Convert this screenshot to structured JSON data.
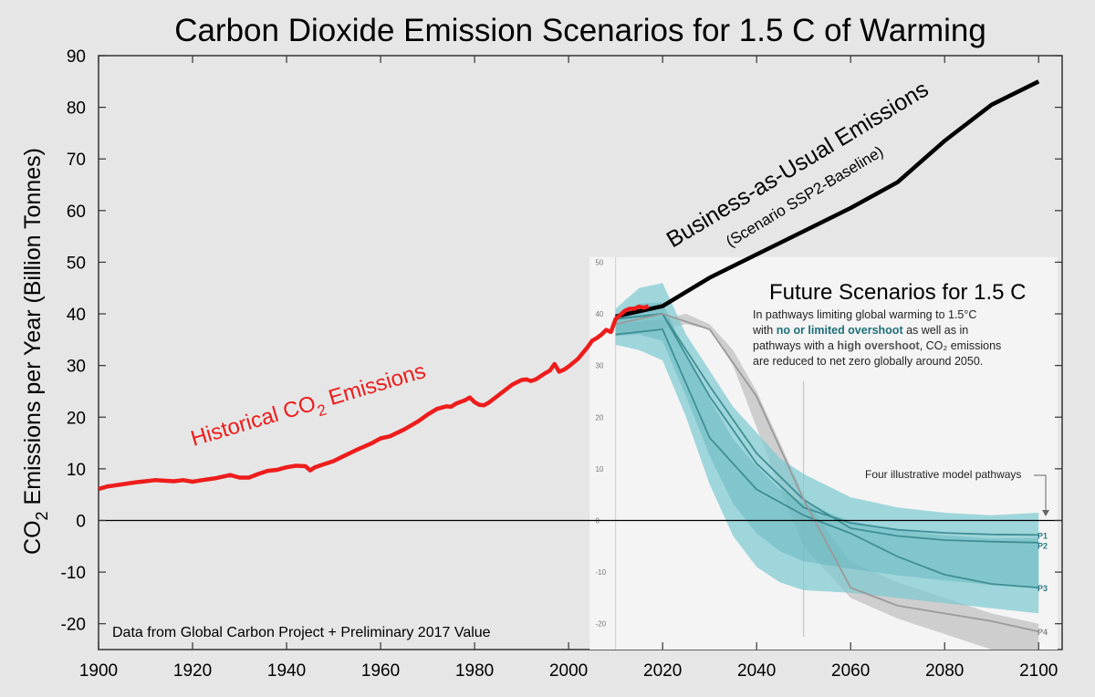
{
  "chart_data": {
    "type": "line",
    "title": "Carbon Dioxide Emission Scenarios for 1.5 C of Warming",
    "ylabel_parts": [
      "CO",
      "2",
      " Emissions per Year (Billion Tonnes)"
    ],
    "xlim": [
      1900,
      2105
    ],
    "ylim": [
      -25,
      90
    ],
    "xticks": [
      1900,
      1920,
      1940,
      1960,
      1980,
      2000,
      2020,
      2040,
      2060,
      2080,
      2100
    ],
    "yticks": [
      90,
      80,
      70,
      60,
      50,
      40,
      30,
      20,
      10,
      0,
      -10,
      -20
    ],
    "grid": false,
    "source_note": "Data from Global Carbon Project + Preliminary 2017 Value",
    "colors": {
      "historical": "#ee1c1c",
      "bau": "#000000",
      "band": "#7ecbd1",
      "band_dark": "#4aa8b2",
      "overshoot": "#c2c2c2",
      "pathway": "#3f8f95",
      "p4": "#9a9a9a",
      "bg": "#e6e6e6"
    },
    "historical": {
      "label_parts": [
        "Historical CO",
        "2",
        " Emissions"
      ],
      "x": [
        1900,
        1902,
        1905,
        1908,
        1910,
        1912,
        1914,
        1916,
        1918,
        1920,
        1922,
        1925,
        1928,
        1930,
        1932,
        1934,
        1936,
        1938,
        1940,
        1942,
        1944,
        1945,
        1946,
        1948,
        1950,
        1952,
        1955,
        1958,
        1960,
        1962,
        1965,
        1968,
        1970,
        1972,
        1974,
        1975,
        1976,
        1978,
        1979,
        1980,
        1981,
        1982,
        1983,
        1985,
        1988,
        1990,
        1991,
        1992,
        1993,
        1995,
        1996,
        1997,
        1998,
        1999,
        2000,
        2002,
        2004,
        2005,
        2006,
        2007,
        2008,
        2009,
        2010,
        2011,
        2012,
        2013,
        2014,
        2015,
        2016,
        2017
      ],
      "y": [
        6.1,
        6.6,
        7.0,
        7.4,
        7.6,
        7.8,
        7.7,
        7.6,
        7.8,
        7.5,
        7.8,
        8.2,
        8.8,
        8.3,
        8.3,
        9.0,
        9.6,
        9.8,
        10.3,
        10.6,
        10.5,
        9.7,
        10.3,
        10.9,
        11.5,
        12.4,
        13.7,
        14.9,
        15.9,
        16.3,
        17.6,
        19.2,
        20.5,
        21.6,
        22.1,
        22.0,
        22.6,
        23.3,
        23.8,
        22.9,
        22.4,
        22.3,
        22.8,
        24.2,
        26.3,
        27.2,
        27.3,
        27.0,
        27.3,
        28.5,
        29.0,
        30.3,
        28.8,
        29.2,
        29.8,
        31.3,
        33.5,
        34.8,
        35.3,
        36.0,
        36.9,
        36.5,
        39.0,
        39.8,
        40.6,
        41.0,
        41.0,
        41.4,
        41.2,
        41.5
      ]
    },
    "bau": {
      "label": "Business-as-Usual Emissions",
      "sublabel": "(Scenario SSP2-Baseline)",
      "x": [
        2010,
        2020,
        2030,
        2040,
        2050,
        2060,
        2070,
        2080,
        2090,
        2100
      ],
      "y": [
        39.5,
        41.5,
        47.0,
        51.5,
        56.0,
        60.5,
        65.5,
        73.5,
        80.5,
        85.0
      ]
    },
    "inset": {
      "title": "Future Scenarios for 1.5 C",
      "caption_lines": [
        [
          {
            "t": "In pathways limiting global warming to 1.5°C",
            "h": ""
          }
        ],
        [
          {
            "t": "with ",
            "h": ""
          },
          {
            "t": "no or limited overshoot",
            "h": "teal"
          },
          {
            "t": " as well as in",
            "h": ""
          }
        ],
        [
          {
            "t": "pathways with a ",
            "h": ""
          },
          {
            "t": "high overshoot",
            "h": "gray"
          },
          {
            "t": ", CO₂ emissions",
            "h": ""
          }
        ],
        [
          {
            "t": "are reduced to net zero globally around 2050.",
            "h": ""
          }
        ]
      ],
      "pathways_note": "Four illustrative model pathways",
      "ticks": [
        50,
        40,
        30,
        20,
        10,
        0,
        -10,
        -20
      ],
      "tick_labels": [
        "50",
        "40",
        "30",
        "20",
        "10",
        "0",
        "-10",
        "-20"
      ],
      "band": {
        "x": [
          2010,
          2015,
          2020,
          2025,
          2030,
          2035,
          2040,
          2045,
          2050,
          2060,
          2070,
          2080,
          2090,
          2100
        ],
        "upper": [
          41,
          45,
          46,
          36,
          29,
          22,
          17,
          12,
          9,
          4.5,
          2.5,
          1.5,
          1,
          1.5
        ],
        "lower": [
          34,
          33,
          31,
          20,
          7,
          -3,
          -9,
          -12,
          -13.5,
          -14,
          -15,
          -16,
          -17,
          -18
        ]
      },
      "overshoot_band": {
        "x": [
          2010,
          2020,
          2025,
          2030,
          2035,
          2040,
          2045,
          2050,
          2055,
          2060,
          2070,
          2080,
          2090,
          2100
        ],
        "upper": [
          38,
          39,
          40,
          38,
          33,
          25,
          15,
          5,
          -2,
          -8,
          -12,
          -15,
          -18,
          -20
        ],
        "lower": [
          36,
          37,
          38,
          37,
          30,
          18,
          6,
          -5,
          -10,
          -15,
          -19,
          -22,
          -25,
          -27
        ]
      },
      "pathways": [
        {
          "name": "P1",
          "x": [
            2010,
            2020,
            2030,
            2040,
            2050,
            2060,
            2070,
            2080,
            2090,
            2100
          ],
          "y": [
            39,
            40,
            24,
            11,
            2.5,
            -0.5,
            -1.8,
            -2.4,
            -2.7,
            -2.8
          ]
        },
        {
          "name": "P2",
          "x": [
            2010,
            2020,
            2030,
            2040,
            2050,
            2060,
            2070,
            2080,
            2090,
            2100
          ],
          "y": [
            39,
            40,
            26,
            13,
            4,
            -1.5,
            -3,
            -3.8,
            -4.1,
            -4.3
          ]
        },
        {
          "name": "P3",
          "x": [
            2010,
            2020,
            2030,
            2040,
            2050,
            2060,
            2070,
            2080,
            2090,
            2100
          ],
          "y": [
            36,
            37,
            16,
            6,
            1,
            -2.5,
            -7,
            -10.5,
            -12.3,
            -13
          ]
        },
        {
          "name": "P4",
          "x": [
            2010,
            2020,
            2030,
            2040,
            2050,
            2060,
            2070,
            2080,
            2090,
            2100
          ],
          "y": [
            38,
            40,
            37,
            24,
            4,
            -13,
            -16.5,
            -18,
            -19.5,
            -21.5
          ]
        }
      ]
    }
  }
}
